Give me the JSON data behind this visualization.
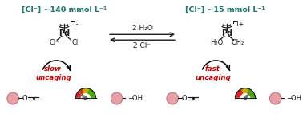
{
  "bg_color": "#ffffff",
  "teal_color": "#1a7a6e",
  "red_color": "#cc0000",
  "black_color": "#1a1a1a",
  "gray_color": "#777777",
  "pink_color": "#e8a0a8",
  "pink_edge": "#c07880",
  "left_title_parts": [
    "[Cl",
    "⁻",
    "] ~140 mmol L",
    "⁻¹"
  ],
  "right_title_parts": [
    "[Cl",
    "⁻",
    "] ~15 mmol L",
    "⁻¹"
  ],
  "eq_top": "2 H₂O",
  "eq_bot": "2 Cl⁻",
  "slow_label": "slow\nuncaging",
  "fast_label": "fast\nuncaging",
  "left_charge": "1-",
  "right_charge": "1+",
  "left_lig_l": "Cl⁻",
  "left_lig_r": "Cl",
  "right_lig_l": "H₂O",
  "right_lig_r": "OH₂",
  "figw": 3.78,
  "figh": 1.43,
  "dpi": 100,
  "gauge_red": "#dd2222",
  "gauge_yellow": "#ccaa00",
  "gauge_green": "#44aa00"
}
